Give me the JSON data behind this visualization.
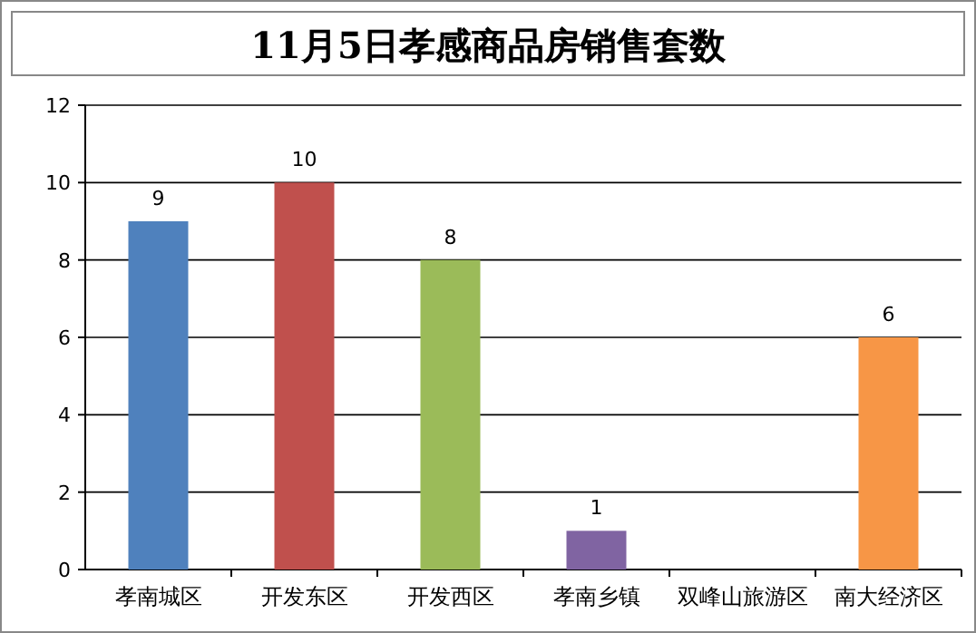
{
  "chart_data": {
    "type": "bar",
    "title": "11月5日孝感商品房销售套数",
    "categories": [
      "孝南城区",
      "开发东区",
      "开发西区",
      "孝南乡镇",
      "双峰山旅游区",
      "南大经济区"
    ],
    "values": [
      9,
      10,
      8,
      1,
      0,
      6
    ],
    "colors": [
      "#4f81bd",
      "#c0504d",
      "#9bbb59",
      "#8064a2",
      "#4bacc6",
      "#f79646"
    ],
    "value_labels": [
      "9",
      "10",
      "8",
      "1",
      null,
      "6"
    ],
    "ylim": [
      0,
      12
    ],
    "yticks": [
      0,
      2,
      4,
      6,
      8,
      10,
      12
    ],
    "grid": "y"
  }
}
